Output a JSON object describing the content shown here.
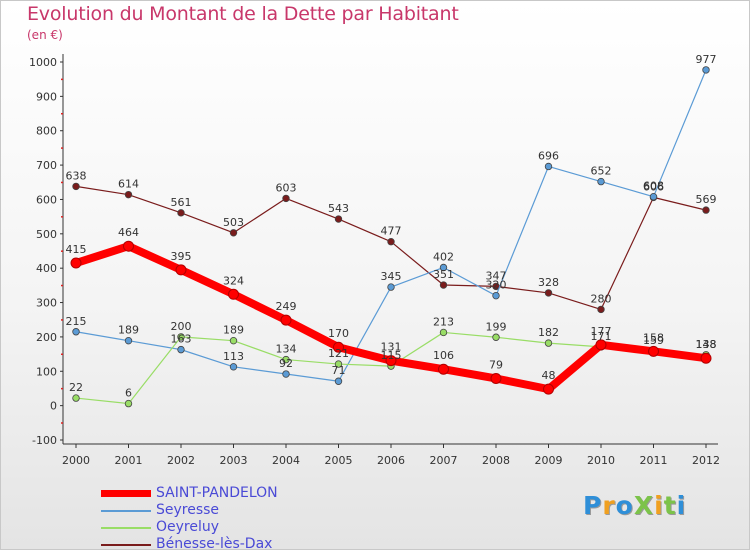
{
  "title": "Evolution du Montant de la Dette par Habitant",
  "unit": "(en €)",
  "logo": "ProXiti",
  "chart_data": {
    "type": "line",
    "x": [
      "2000",
      "2001",
      "2002",
      "2003",
      "2004",
      "2005",
      "2006",
      "2007",
      "2008",
      "2009",
      "2010",
      "2011",
      "2012"
    ],
    "ylim": [
      -100,
      1000
    ],
    "yticks": [
      -100,
      0,
      100,
      200,
      300,
      400,
      500,
      600,
      700,
      800,
      900,
      1000
    ],
    "grid": false,
    "legend_position": "bottom-left",
    "series": [
      {
        "name": "SAINT-PANDELON",
        "color": "#ff0000",
        "values": [
          415,
          464,
          395,
          324,
          249,
          170,
          131,
          106,
          79,
          48,
          177,
          158,
          138
        ],
        "labels": [
          "415",
          "464",
          "395",
          "324",
          "249",
          "170",
          "131",
          "106",
          "79",
          "48",
          "177",
          "158",
          "138"
        ]
      },
      {
        "name": "Seyresse",
        "color": "#5b9bd5",
        "values": [
          215,
          189,
          163,
          113,
          92,
          71,
          345,
          402,
          320,
          696,
          652,
          608,
          977
        ],
        "labels": [
          "215",
          "189",
          "163",
          "113",
          "92",
          "71",
          "345",
          "402",
          "320",
          "696",
          "652",
          "608",
          "977"
        ]
      },
      {
        "name": "Oeyreluy",
        "color": "#99dd66",
        "values": [
          22,
          6,
          200,
          189,
          134,
          121,
          115,
          213,
          199,
          182,
          171,
          159,
          148
        ],
        "labels": [
          "22",
          "6",
          "200",
          "189",
          "134",
          "121",
          "115",
          "213",
          "199",
          "182",
          "171",
          "159",
          "148"
        ]
      },
      {
        "name": "Bénesse-lès-Dax",
        "color": "#7a1c1c",
        "values": [
          638,
          614,
          561,
          503,
          603,
          543,
          477,
          351,
          347,
          328,
          280,
          606,
          569
        ],
        "labels": [
          "638",
          "614",
          "561",
          "503",
          "603",
          "543",
          "477",
          "351",
          "347",
          "328",
          "280",
          "606",
          "569"
        ]
      }
    ]
  }
}
